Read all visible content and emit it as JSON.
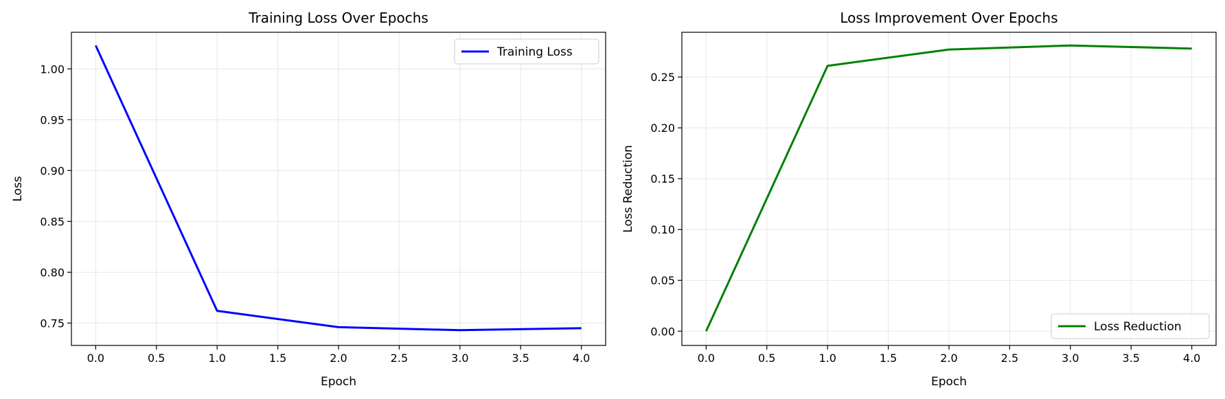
{
  "chart_data": [
    {
      "type": "line",
      "title": "Training Loss Over Epochs",
      "xlabel": "Epoch",
      "ylabel": "Loss",
      "x": [
        0,
        1,
        2,
        3,
        4
      ],
      "xlim": [
        -0.2,
        4.2
      ],
      "ylim": [
        0.728,
        1.036
      ],
      "xticks": [
        "0.0",
        "0.5",
        "1.0",
        "1.5",
        "2.0",
        "2.5",
        "3.0",
        "3.5",
        "4.0"
      ],
      "yticks": [
        "0.75",
        "0.80",
        "0.85",
        "0.90",
        "0.95",
        "1.00"
      ],
      "grid": true,
      "legend_position": "upper right",
      "series": [
        {
          "name": "Training Loss",
          "color": "#0000ff",
          "values": [
            1.023,
            0.762,
            0.746,
            0.743,
            0.745
          ]
        }
      ]
    },
    {
      "type": "line",
      "title": "Loss Improvement Over Epochs",
      "xlabel": "Epoch",
      "ylabel": "Loss Reduction",
      "x": [
        0,
        1,
        2,
        3,
        4
      ],
      "xlim": [
        -0.2,
        4.2
      ],
      "ylim": [
        -0.014,
        0.294
      ],
      "xticks": [
        "0.0",
        "0.5",
        "1.0",
        "1.5",
        "2.0",
        "2.5",
        "3.0",
        "3.5",
        "4.0"
      ],
      "yticks": [
        "0.00",
        "0.05",
        "0.10",
        "0.15",
        "0.20",
        "0.25"
      ],
      "grid": true,
      "legend_position": "lower right",
      "series": [
        {
          "name": "Loss Reduction",
          "color": "#008000",
          "values": [
            0.0,
            0.261,
            0.277,
            0.281,
            0.278
          ]
        }
      ]
    }
  ]
}
